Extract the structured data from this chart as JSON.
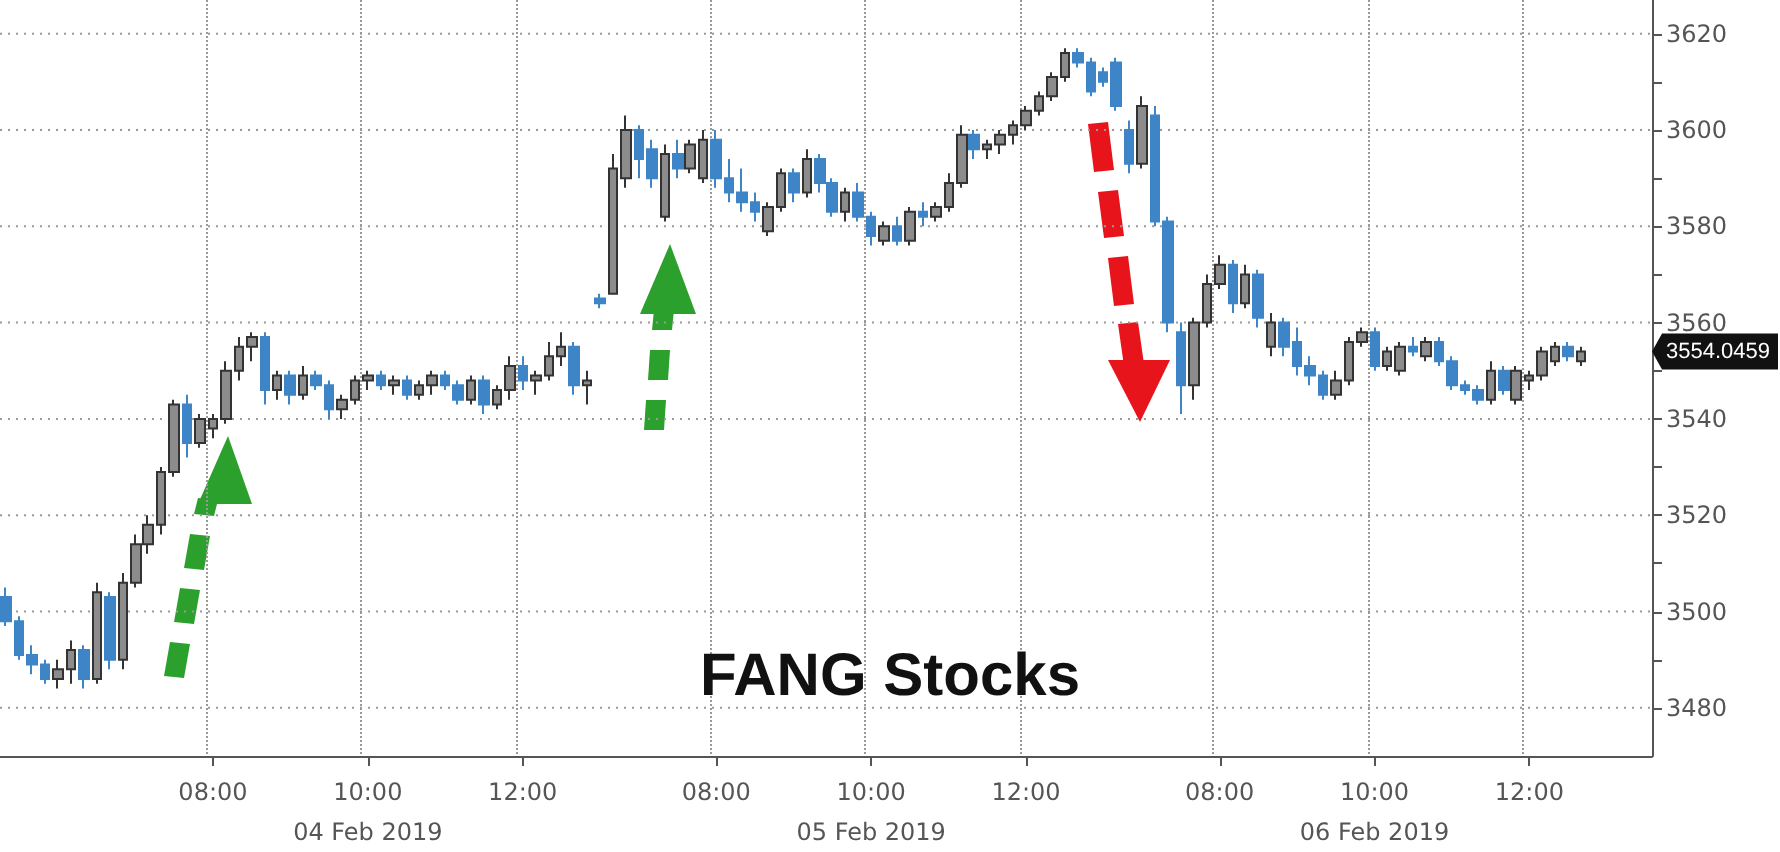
{
  "chart_data": {
    "type": "candlestick",
    "title": "FANG Stocks",
    "categories": [
      null,
      null,
      null,
      null,
      null,
      null,
      null,
      null,
      null,
      null,
      null,
      null,
      null,
      null,
      null,
      null,
      "08:00",
      null,
      null,
      null,
      null,
      null,
      null,
      null,
      null,
      null,
      null,
      null,
      "10:00\n04 Feb 2019",
      null,
      null,
      null,
      null,
      null,
      null,
      null,
      null,
      null,
      null,
      null,
      "12:00",
      null,
      null,
      null,
      null,
      null,
      null,
      null,
      null,
      null,
      null,
      null,
      null,
      null,
      null,
      "08:00",
      null,
      null,
      null,
      null,
      null,
      null,
      null,
      null,
      null,
      null,
      null,
      "10:00\n05 Feb 2019",
      null,
      null,
      null,
      null,
      null,
      null,
      null,
      null,
      null,
      null,
      null,
      "12:00",
      null,
      null,
      null,
      null,
      null,
      null,
      null,
      null,
      null,
      null,
      null,
      null,
      null,
      null,
      "08:00",
      null,
      null,
      null,
      null,
      null,
      null,
      null,
      null,
      null,
      null,
      null,
      "10:00\n06 Feb 2019",
      null,
      null,
      null,
      null,
      null,
      null,
      null,
      null,
      null,
      null,
      null,
      "12:00",
      null,
      null,
      null,
      null,
      null,
      null,
      null,
      null,
      null
    ],
    "ohlc": [
      [
        3503,
        3505,
        3497,
        3498
      ],
      [
        3498,
        3499,
        3490,
        3491
      ],
      [
        3491,
        3493,
        3487,
        3489
      ],
      [
        3489,
        3490,
        3485,
        3486
      ],
      [
        3486,
        3490,
        3484,
        3488
      ],
      [
        3488,
        3494,
        3485,
        3492
      ],
      [
        3492,
        3493,
        3484,
        3486
      ],
      [
        3486,
        3506,
        3485,
        3504
      ],
      [
        3503,
        3504,
        3488,
        3490
      ],
      [
        3490,
        3508,
        3488,
        3506
      ],
      [
        3506,
        3516,
        3505,
        3514
      ],
      [
        3514,
        3520,
        3512,
        3518
      ],
      [
        3518,
        3530,
        3516,
        3529
      ],
      [
        3529,
        3544,
        3528,
        3543
      ],
      [
        3543,
        3545,
        3532,
        3535
      ],
      [
        3535,
        3541,
        3534,
        3540
      ],
      [
        3538,
        3541,
        3536,
        3540
      ],
      [
        3540,
        3552,
        3539,
        3550
      ],
      [
        3550,
        3557,
        3548,
        3555
      ],
      [
        3555,
        3558,
        3552,
        3557
      ],
      [
        3557,
        3558,
        3543,
        3546
      ],
      [
        3546,
        3550,
        3544,
        3549
      ],
      [
        3549,
        3550,
        3543,
        3545
      ],
      [
        3545,
        3551,
        3544,
        3549
      ],
      [
        3549,
        3550,
        3546,
        3547
      ],
      [
        3547,
        3548,
        3540,
        3542
      ],
      [
        3542,
        3545,
        3540,
        3544
      ],
      [
        3544,
        3549,
        3543,
        3548
      ],
      [
        3548,
        3550,
        3546,
        3549
      ],
      [
        3549,
        3550,
        3546,
        3547
      ],
      [
        3547,
        3549,
        3545,
        3548
      ],
      [
        3548,
        3549,
        3544,
        3545
      ],
      [
        3545,
        3548,
        3544,
        3547
      ],
      [
        3547,
        3550,
        3545,
        3549
      ],
      [
        3549,
        3550,
        3546,
        3547
      ],
      [
        3547,
        3548,
        3543,
        3544
      ],
      [
        3544,
        3549,
        3543,
        3548
      ],
      [
        3548,
        3549,
        3541,
        3543
      ],
      [
        3543,
        3547,
        3542,
        3546
      ],
      [
        3546,
        3553,
        3544,
        3551
      ],
      [
        3551,
        3553,
        3546,
        3548
      ],
      [
        3548,
        3550,
        3545,
        3549
      ],
      [
        3549,
        3556,
        3548,
        3553
      ],
      [
        3553,
        3558,
        3551,
        3555
      ],
      [
        3555,
        3556,
        3545,
        3547
      ],
      [
        3547,
        3550,
        3543,
        3548
      ],
      [
        3565,
        3566,
        3563,
        3564
      ],
      [
        3566,
        3595,
        3566,
        3592
      ],
      [
        3590,
        3603,
        3588,
        3600
      ],
      [
        3600,
        3601,
        3590,
        3594
      ],
      [
        3596,
        3598,
        3588,
        3590
      ],
      [
        3582,
        3597,
        3581,
        3595
      ],
      [
        3595,
        3598,
        3590,
        3592
      ],
      [
        3592,
        3598,
        3591,
        3597
      ],
      [
        3590,
        3600,
        3589,
        3598
      ],
      [
        3598,
        3600,
        3588,
        3590
      ],
      [
        3590,
        3594,
        3585,
        3587
      ],
      [
        3587,
        3592,
        3583,
        3585
      ],
      [
        3585,
        3587,
        3581,
        3583
      ],
      [
        3579,
        3585,
        3578,
        3584
      ],
      [
        3584,
        3592,
        3583,
        3591
      ],
      [
        3591,
        3592,
        3585,
        3587
      ],
      [
        3587,
        3596,
        3586,
        3594
      ],
      [
        3594,
        3595,
        3587,
        3589
      ],
      [
        3589,
        3590,
        3582,
        3583
      ],
      [
        3583,
        3588,
        3581,
        3587
      ],
      [
        3587,
        3589,
        3581,
        3582
      ],
      [
        3582,
        3583,
        3576,
        3578
      ],
      [
        3577,
        3581,
        3576,
        3580
      ],
      [
        3580,
        3582,
        3576,
        3577
      ],
      [
        3577,
        3584,
        3576,
        3583
      ],
      [
        3583,
        3585,
        3580,
        3582
      ],
      [
        3582,
        3585,
        3581,
        3584
      ],
      [
        3584,
        3591,
        3583,
        3589
      ],
      [
        3589,
        3601,
        3588,
        3599
      ],
      [
        3599,
        3600,
        3594,
        3596
      ],
      [
        3596,
        3598,
        3594,
        3597
      ],
      [
        3597,
        3600,
        3595,
        3599
      ],
      [
        3599,
        3602,
        3597,
        3601
      ],
      [
        3601,
        3605,
        3600,
        3604
      ],
      [
        3604,
        3608,
        3603,
        3607
      ],
      [
        3607,
        3612,
        3606,
        3611
      ],
      [
        3611,
        3617,
        3610,
        3616
      ],
      [
        3616,
        3617,
        3613,
        3614
      ],
      [
        3614,
        3615,
        3607,
        3608
      ],
      [
        3612,
        3613,
        3609,
        3610
      ],
      [
        3614,
        3615,
        3604,
        3605
      ],
      [
        3600,
        3602,
        3591,
        3593
      ],
      [
        3593,
        3607,
        3592,
        3605
      ],
      [
        3603,
        3605,
        3580,
        3581
      ],
      [
        3581,
        3582,
        3558,
        3560
      ],
      [
        3558,
        3560,
        3541,
        3547
      ],
      [
        3547,
        3561,
        3544,
        3560
      ],
      [
        3560,
        3570,
        3559,
        3568
      ],
      [
        3568,
        3574,
        3567,
        3572
      ],
      [
        3572,
        3573,
        3562,
        3564
      ],
      [
        3564,
        3572,
        3563,
        3570
      ],
      [
        3570,
        3571,
        3559,
        3561
      ],
      [
        3555,
        3562,
        3553,
        3560
      ],
      [
        3560,
        3561,
        3553,
        3555
      ],
      [
        3556,
        3559,
        3549,
        3551
      ],
      [
        3551,
        3553,
        3547,
        3549
      ],
      [
        3549,
        3550,
        3544,
        3545
      ],
      [
        3545,
        3550,
        3544,
        3548
      ],
      [
        3548,
        3557,
        3547,
        3556
      ],
      [
        3556,
        3559,
        3555,
        3558
      ],
      [
        3558,
        3559,
        3550,
        3551
      ],
      [
        3551,
        3555,
        3550,
        3554
      ],
      [
        3550,
        3556,
        3549,
        3555
      ],
      [
        3555,
        3557,
        3553,
        3554
      ],
      [
        3553,
        3557,
        3552,
        3556
      ],
      [
        3556,
        3557,
        3551,
        3552
      ],
      [
        3552,
        3553,
        3546,
        3547
      ],
      [
        3547,
        3548,
        3545,
        3546
      ],
      [
        3546,
        3547,
        3543,
        3544
      ],
      [
        3544,
        3552,
        3543,
        3550
      ],
      [
        3550,
        3551,
        3545,
        3546
      ],
      [
        3544,
        3551,
        3543,
        3550
      ],
      [
        3548,
        3550,
        3546,
        3549
      ],
      [
        3549,
        3555,
        3548,
        3554
      ],
      [
        3552,
        3556,
        3551,
        3555
      ],
      [
        3555,
        3556,
        3552,
        3553
      ],
      [
        3552,
        3555,
        3551,
        3554
      ],
      null,
      null,
      null,
      null,
      null
    ],
    "colors": [
      "#3d85c6",
      "#3d85c6",
      "#3d85c6",
      "#3d85c6",
      "#8c8c8c",
      "#8c8c8c",
      "#3d85c6",
      "#8c8c8c",
      "#3d85c6",
      "#8c8c8c",
      "#8c8c8c",
      "#8c8c8c",
      "#8c8c8c",
      "#8c8c8c",
      "#3d85c6",
      "#8c8c8c",
      "#8c8c8c",
      "#8c8c8c",
      "#8c8c8c",
      "#8c8c8c",
      "#3d85c6",
      "#8c8c8c",
      "#3d85c6",
      "#8c8c8c",
      "#3d85c6",
      "#3d85c6",
      "#8c8c8c",
      "#8c8c8c",
      "#8c8c8c",
      "#3d85c6",
      "#8c8c8c",
      "#3d85c6",
      "#8c8c8c",
      "#8c8c8c",
      "#3d85c6",
      "#3d85c6",
      "#8c8c8c",
      "#3d85c6",
      "#8c8c8c",
      "#8c8c8c",
      "#3d85c6",
      "#8c8c8c",
      "#8c8c8c",
      "#8c8c8c",
      "#3d85c6",
      "#8c8c8c",
      "#3d85c6",
      "#8c8c8c",
      "#8c8c8c",
      "#3d85c6",
      "#3d85c6",
      "#8c8c8c",
      "#3d85c6",
      "#8c8c8c",
      "#8c8c8c",
      "#3d85c6",
      "#3d85c6",
      "#3d85c6",
      "#3d85c6",
      "#8c8c8c",
      "#8c8c8c",
      "#3d85c6",
      "#8c8c8c",
      "#3d85c6",
      "#3d85c6",
      "#8c8c8c",
      "#3d85c6",
      "#3d85c6",
      "#8c8c8c",
      "#3d85c6",
      "#8c8c8c",
      "#3d85c6",
      "#8c8c8c",
      "#8c8c8c",
      "#8c8c8c",
      "#3d85c6",
      "#8c8c8c",
      "#8c8c8c",
      "#8c8c8c",
      "#8c8c8c",
      "#8c8c8c",
      "#8c8c8c",
      "#8c8c8c",
      "#3d85c6",
      "#3d85c6",
      "#3d85c6",
      "#3d85c6",
      "#3d85c6",
      "#8c8c8c",
      "#3d85c6",
      "#3d85c6",
      "#3d85c6",
      "#8c8c8c",
      "#8c8c8c",
      "#8c8c8c",
      "#3d85c6",
      "#8c8c8c",
      "#3d85c6",
      "#8c8c8c",
      "#3d85c6",
      "#3d85c6",
      "#3d85c6",
      "#3d85c6",
      "#8c8c8c",
      "#8c8c8c",
      "#8c8c8c",
      "#3d85c6",
      "#8c8c8c",
      "#8c8c8c",
      "#3d85c6",
      "#8c8c8c",
      "#3d85c6",
      "#3d85c6",
      "#3d85c6",
      "#3d85c6",
      "#8c8c8c",
      "#3d85c6",
      "#8c8c8c",
      "#8c8c8c",
      "#8c8c8c",
      "#8c8c8c",
      "#3d85c6",
      "#8c8c8c",
      null,
      null,
      null,
      null,
      null
    ],
    "ylim": [
      3470,
      3627
    ],
    "yticks": [
      3480,
      {
        "value": 3490,
        "label": null
      },
      3500,
      {
        "value": 3510,
        "label": null
      },
      3520,
      {
        "value": 3530,
        "label": null
      },
      3540,
      {
        "value": 3550,
        "label": null
      },
      3560,
      {
        "value": 3570,
        "label": null
      },
      3580,
      {
        "value": 3590,
        "label": null
      },
      3600,
      {
        "value": 3610,
        "label": null
      },
      3620
    ],
    "grid": true,
    "annotations": [
      "3554.0459"
    ]
  }
}
